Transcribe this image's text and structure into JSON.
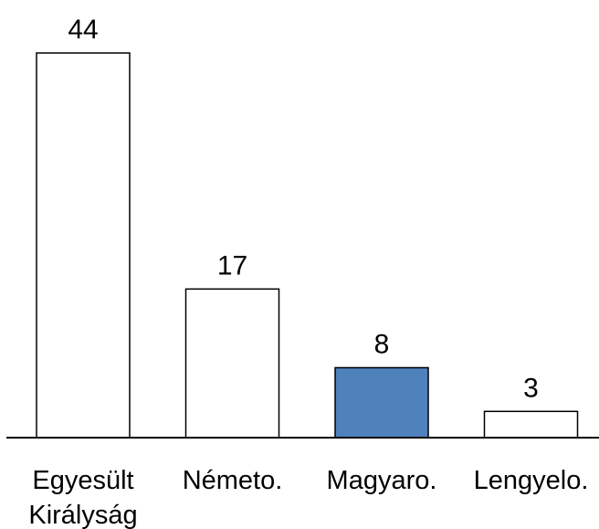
{
  "chart_data": {
    "type": "bar",
    "title": "",
    "xlabel": "",
    "ylabel": "",
    "categories": [
      [
        "Egyesült",
        "Királyság"
      ],
      [
        "Németo."
      ],
      [
        "Magyaro."
      ],
      [
        "Lengyelo."
      ]
    ],
    "values": [
      44,
      17,
      8,
      3
    ],
    "data_labels": [
      "44",
      "17",
      "8",
      "3"
    ],
    "highlight_index": 2,
    "ylim": [
      0,
      44
    ],
    "grid": false,
    "legend": "none",
    "colors": {
      "bar_fill": "#ffffff",
      "bar_stroke": "#000000",
      "highlight_fill": "#4f81bd",
      "axis": "#000000"
    }
  }
}
